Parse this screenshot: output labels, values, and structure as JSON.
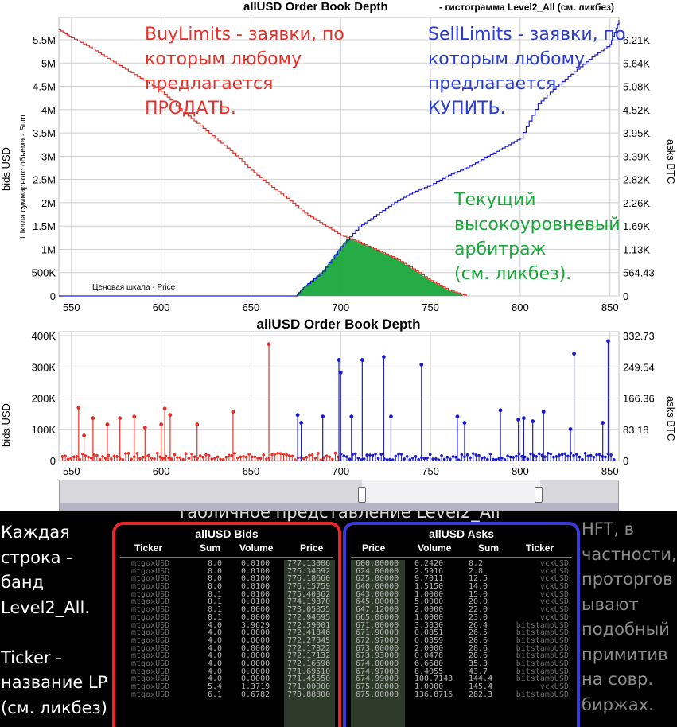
{
  "chart_data": [
    {
      "type": "area",
      "title": "allUSD Order Book Depth",
      "subtitle": "- гистограмма Level2_All (см. ликбез)",
      "ylabel": "bids USD",
      "ylabel_inner": "Шкала суммарного объема - Sum",
      "ylabel_right": "asks BTC",
      "xlabel": "Ценовая шкала - Price",
      "xlim": [
        543,
        855
      ],
      "ylim": [
        0,
        5650000
      ],
      "x_ticks": [
        "550",
        "600",
        "650",
        "700",
        "750",
        "800",
        "850"
      ],
      "y_ticks_left": [
        "0",
        "500K",
        "1M",
        "1.5M",
        "2M",
        "2.5M",
        "3M",
        "3.5M",
        "4M",
        "4.5M",
        "5M",
        "5.5M"
      ],
      "y_ticks_right": [
        "0",
        "564.43",
        "1.13K",
        "1.69K",
        "2.26K",
        "2.82K",
        "3.39K",
        "3.95K",
        "4.52K",
        "5.08K",
        "5.64K",
        "6.21K"
      ],
      "series": [
        {
          "name": "bids",
          "color": "#e8302a",
          "x": [
            543,
            550,
            560,
            570,
            580,
            590,
            600,
            610,
            620,
            630,
            640,
            650,
            660,
            670,
            680,
            690,
            700,
            710,
            720,
            730,
            740,
            750,
            760,
            770
          ],
          "y": [
            5400000,
            5240000,
            5050000,
            4820000,
            4600000,
            4380000,
            4150000,
            3800000,
            3500000,
            3200000,
            2900000,
            2550000,
            2250000,
            1980000,
            1680000,
            1450000,
            1230000,
            1090000,
            930000,
            770000,
            550000,
            310000,
            120000,
            0
          ]
        },
        {
          "name": "asks",
          "color": "#1a1ad0",
          "x": [
            675,
            680,
            690,
            700,
            710,
            720,
            730,
            740,
            750,
            760,
            770,
            780,
            790,
            800,
            810,
            820,
            830,
            840,
            850,
            855
          ],
          "y": [
            0,
            200000,
            500000,
            1000000,
            1400000,
            1650000,
            1900000,
            2100000,
            2250000,
            2450000,
            2600000,
            2800000,
            3000000,
            3200000,
            3900000,
            4250000,
            4550000,
            4850000,
            5100000,
            5600000
          ]
        }
      ],
      "arbitrage_area": {
        "x_from": 675,
        "x_to": 768,
        "color": "#1aa83c"
      },
      "grid": true
    },
    {
      "type": "scatter",
      "title": "allUSD Order Book Depth",
      "ylabel": "bids USD",
      "ylabel_right": "asks BTC",
      "xlim": [
        543,
        855
      ],
      "ylim": [
        0,
        410000
      ],
      "x_ticks": [
        "550",
        "600",
        "650",
        "700",
        "750",
        "800",
        "850"
      ],
      "y_ticks_left": [
        "0",
        "100K",
        "200K",
        "300K",
        "400K"
      ],
      "y_ticks_right": [
        "0",
        "83.18",
        "166.36",
        "249.54",
        "332.73"
      ],
      "bid_spikes": [
        [
          554,
          168000
        ],
        [
          557,
          80000
        ],
        [
          562,
          135000
        ],
        [
          570,
          115000
        ],
        [
          577,
          135000
        ],
        [
          585,
          140000
        ],
        [
          591,
          105000
        ],
        [
          600,
          115000
        ],
        [
          602,
          165000
        ],
        [
          605,
          145000
        ],
        [
          620,
          115000
        ],
        [
          640,
          155000
        ],
        [
          660,
          370000
        ]
      ],
      "ask_spikes": [
        [
          676,
          145000
        ],
        [
          678,
          120000
        ],
        [
          690,
          140000
        ],
        [
          699,
          320000
        ],
        [
          700,
          280000
        ],
        [
          706,
          140000
        ],
        [
          712,
          320000
        ],
        [
          724,
          330000
        ],
        [
          728,
          140000
        ],
        [
          745,
          305000
        ],
        [
          765,
          140000
        ],
        [
          769,
          120000
        ],
        [
          789,
          160000
        ],
        [
          799,
          130000
        ],
        [
          802,
          135000
        ],
        [
          807,
          125000
        ],
        [
          813,
          155000
        ],
        [
          828,
          100000
        ],
        [
          830,
          340000
        ],
        [
          846,
          120000
        ],
        [
          849,
          380000
        ]
      ]
    }
  ],
  "top_chart": {
    "title": "allUSD Order Book Depth",
    "subtitle": "- гистограмма Level2_All (см. ликбез)",
    "ylabel_left": "bids USD",
    "ylabel_inner": "Шкала суммарного объема - Sum",
    "ylabel_right": "asks BTC",
    "price_label": "Ценовая шкала - Price"
  },
  "bottom_chart": {
    "title": "allUSD Order Book Depth",
    "ylabel_left": "bids USD",
    "ylabel_right": "asks BTC"
  },
  "annotations": {
    "buy": "BuyLimits - заявки, по\nкоторым любому\nпредлагается\n   ПРОДАТЬ.",
    "sell": "SellLimits - заявки, по\nкоторым любому\nпредлагается\nКУПИТЬ.",
    "arb": "Текущий\nвысокоуровневый\nарбитраж\n(см. ликбез)."
  },
  "colors": {
    "bids": "#e8302a",
    "asks": "#1a1ad0",
    "arbitrage": "#1aa83c",
    "annot_red": "#e8302a",
    "annot_blue": "#2a3bd0",
    "annot_green": "#1aa83c"
  },
  "table_caption": "Табличное представление Level2_All",
  "left_note": "Каждая\nстрока -\nбанд\nLevel2_All.\n\nTicker -\nназвание LP\n(см. ликбез)",
  "right_note": "HFT, в\nчастности,\nпроторгов\nывают\nподобный\nпримитив\nна совр.\nбиржах.",
  "bids_table": {
    "title": "allUSD Bids",
    "headers": [
      "Ticker",
      "Sum",
      "Volume",
      "Price"
    ],
    "rows": [
      [
        "mtgoxUSD",
        "0.0",
        "0.0100",
        "777.13006"
      ],
      [
        "mtgoxUSD",
        "0.0",
        "0.0100",
        "776.34692"
      ],
      [
        "mtgoxUSD",
        "0.0",
        "0.0100",
        "776.18660"
      ],
      [
        "mtgoxUSD",
        "0.0",
        "0.0100",
        "776.15759"
      ],
      [
        "mtgoxUSD",
        "0.1",
        "0.0100",
        "775.40362"
      ],
      [
        "mtgoxUSD",
        "0.1",
        "0.0100",
        "774.19870"
      ],
      [
        "mtgoxUSD",
        "0.1",
        "0.0000",
        "773.05855"
      ],
      [
        "mtgoxUSD",
        "0.1",
        "0.0000",
        "772.94695"
      ],
      [
        "mtgoxUSD",
        "4.0",
        "3.9629",
        "772.59001"
      ],
      [
        "mtgoxUSD",
        "4.0",
        "0.0000",
        "772.41846"
      ],
      [
        "mtgoxUSD",
        "4.0",
        "0.0000",
        "772.27845"
      ],
      [
        "mtgoxUSD",
        "4.0",
        "0.0000",
        "772.17822"
      ],
      [
        "mtgoxUSD",
        "4.0",
        "0.0000",
        "772.17132"
      ],
      [
        "mtgoxUSD",
        "4.0",
        "0.0000",
        "772.16696"
      ],
      [
        "mtgoxUSD",
        "4.0",
        "0.0000",
        "771.69510"
      ],
      [
        "mtgoxUSD",
        "4.0",
        "0.0000",
        "771.45550"
      ],
      [
        "mtgoxUSD",
        "5.4",
        "1.3719",
        "771.00000"
      ],
      [
        "mtgoxUSD",
        "6.1",
        "0.6782",
        "770.88800"
      ]
    ]
  },
  "asks_table": {
    "title": "allUSD Asks",
    "headers": [
      "Price",
      "Volume",
      "Sum",
      "Ticker"
    ],
    "rows": [
      [
        "600.00000",
        "0.2420",
        "0.2",
        "vcxUSD"
      ],
      [
        "624.00000",
        "2.5916",
        "2.8",
        "vcxUSD"
      ],
      [
        "625.00000",
        "9.7011",
        "12.5",
        "vcxUSD"
      ],
      [
        "640.00000",
        "1.5150",
        "14.0",
        "vcxUSD"
      ],
      [
        "643.00000",
        "1.0000",
        "15.0",
        "vcxUSD"
      ],
      [
        "645.00000",
        "5.0000",
        "20.0",
        "vcxUSD"
      ],
      [
        "647.12000",
        "2.0000",
        "22.0",
        "vcxUSD"
      ],
      [
        "665.00000",
        "1.0000",
        "23.0",
        "vcxUSD"
      ],
      [
        "671.00000",
        "3.3830",
        "26.4",
        "bitstampUSD"
      ],
      [
        "671.90000",
        "0.0851",
        "26.5",
        "bitstampUSD"
      ],
      [
        "672.97000",
        "0.0359",
        "26.6",
        "bitstampUSD"
      ],
      [
        "673.00000",
        "2.0000",
        "28.6",
        "bitstampUSD"
      ],
      [
        "673.93000",
        "0.0478",
        "28.6",
        "bitstampUSD"
      ],
      [
        "674.00000",
        "6.6680",
        "35.3",
        "bitstampUSD"
      ],
      [
        "674.97000",
        "8.4055",
        "43.7",
        "bitstampUSD"
      ],
      [
        "674.99000",
        "100.7143",
        "144.4",
        "bitstampUSD"
      ],
      [
        "675.00000",
        "1.0000",
        "145.4",
        "vcxUSD"
      ],
      [
        "675.00000",
        "136.8716",
        "282.3",
        "bitstampUSD"
      ]
    ]
  }
}
